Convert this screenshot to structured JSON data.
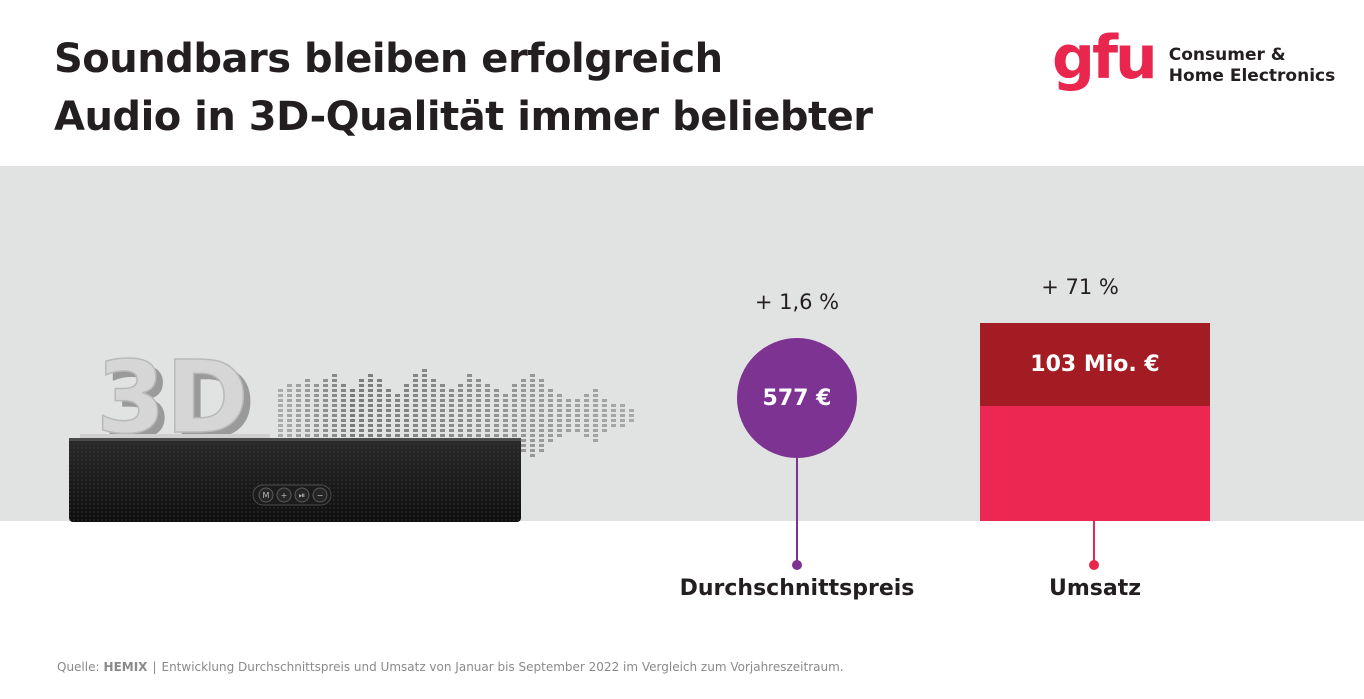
{
  "header": {
    "title_line1": "Soundbars bleiben erfolgreich",
    "title_line2": "Audio in 3D-Qualität immer beliebter"
  },
  "logo": {
    "mark": "gfu",
    "line1": "Consumer &",
    "line2": "Home Electronics",
    "color": "#e8264e"
  },
  "illustration": {
    "label_3d": "3D",
    "buttons": [
      "M",
      "+",
      "⏯",
      "−"
    ]
  },
  "price": {
    "change": "+ 1,6 %",
    "value": "577 €",
    "label": "Durchschnittspreis",
    "color": "#7d3391"
  },
  "revenue": {
    "change": "+ 71 %",
    "value": "103 Mio. €",
    "label": "Umsatz",
    "growth_color": "#a31c23",
    "base_color": "#ec2752"
  },
  "footer": {
    "source_label": "Quelle:",
    "source_brand": "HEMIX",
    "source_text": "Entwicklung Durchschnittspreis und Umsatz von Januar bis September 2022 im Vergleich zum Vorjahreszeitraum."
  }
}
